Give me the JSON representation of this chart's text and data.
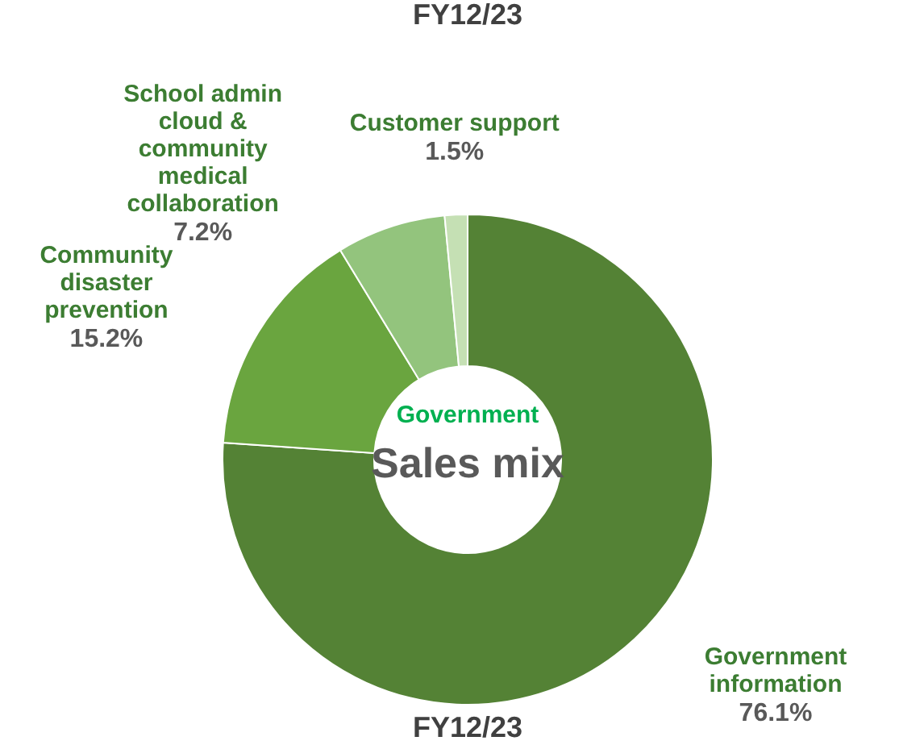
{
  "chart_data": {
    "type": "donut",
    "title": "Sales mix",
    "subtitle": "Government",
    "categories": [
      "Government information",
      "Community disaster prevention",
      "School admin cloud & community medical collaboration",
      "Customer support"
    ],
    "values": [
      76.1,
      15.2,
      7.2,
      1.5
    ],
    "value_labels": [
      "76.1%",
      "15.2%",
      "7.2%",
      "1.5%"
    ],
    "colors": [
      "#548235",
      "#6aa53f",
      "#93c47d",
      "#c5e0b4"
    ],
    "annotations": [
      "FY12/23",
      "FY12/23"
    ],
    "legend": false
  }
}
